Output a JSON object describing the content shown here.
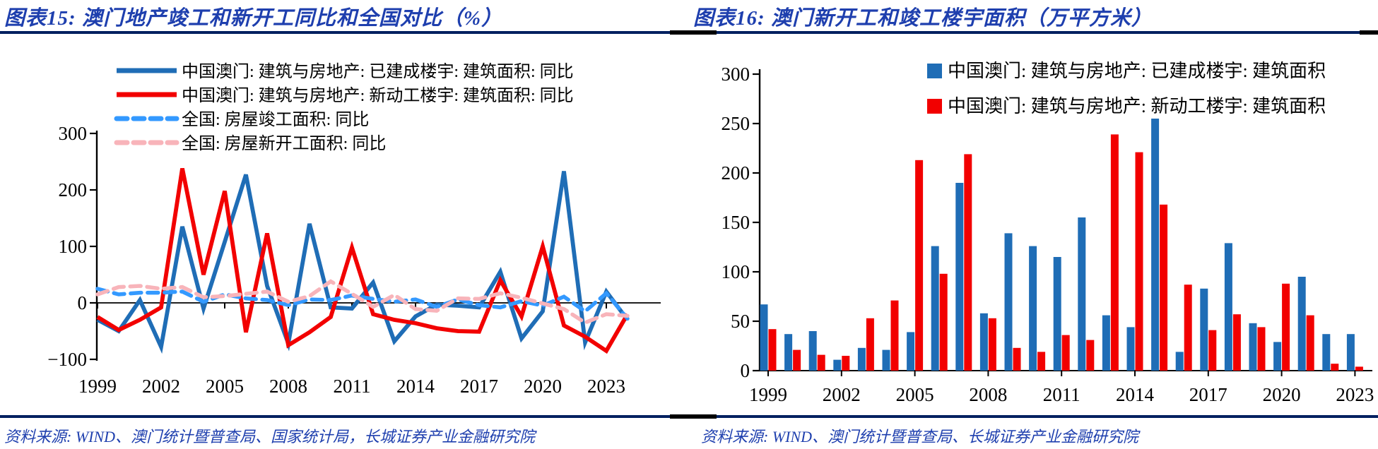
{
  "colors": {
    "title_text": "#1e3fae",
    "divider_rule": "#002060",
    "macau_completed_blue": "#1f6db6",
    "macau_new_starts_red": "#f20000",
    "national_completed_lightblue": "#3399ff",
    "national_new_starts_pink": "#f8b4ba",
    "axis_black": "#000000"
  },
  "left_panel": {
    "title": "图表15:  澳门地产竣工和新开工同比和全国对比（%）",
    "source": "资料来源: WIND、澳门统计暨普查局、国家统计局，长城证券产业金融研究院"
  },
  "right_panel": {
    "title": "图表16:  澳门新开工和竣工楼宇面积（万平方米）",
    "source": "资料来源: WIND、澳门统计暨普查局、长城证券产业金融研究院"
  },
  "chart_data": [
    {
      "type": "line",
      "title": "澳门地产竣工和新开工同比和全国对比（%）",
      "x": [
        1999,
        2000,
        2001,
        2002,
        2003,
        2004,
        2005,
        2006,
        2007,
        2008,
        2009,
        2010,
        2011,
        2012,
        2013,
        2014,
        2015,
        2016,
        2017,
        2018,
        2019,
        2020,
        2021,
        2022,
        2023,
        2024
      ],
      "xticks": [
        1999,
        2002,
        2005,
        2008,
        2011,
        2014,
        2017,
        2020,
        2023
      ],
      "ylim": [
        -100,
        300
      ],
      "yticks": [
        -100,
        0,
        100,
        200,
        300
      ],
      "grid": false,
      "legend_position": "top-left-inside",
      "series": [
        {
          "name": "中国澳门: 建筑与房地产: 已建成楼宇: 建筑面积: 同比",
          "color": "#1f6db6",
          "dash": "solid",
          "values": [
            -30,
            -50,
            5,
            -78,
            135,
            -10,
            108,
            227,
            30,
            -72,
            140,
            -8,
            -10,
            36,
            -68,
            -24,
            -3,
            -5,
            -8,
            55,
            -63,
            -15,
            233,
            -70,
            20,
            -30
          ]
        },
        {
          "name": "中国澳门: 建筑与房地产: 新动工楼宇: 建筑面积: 同比",
          "color": "#f20000",
          "dash": "solid",
          "values": [
            -25,
            -48,
            -30,
            -8,
            238,
            50,
            198,
            -52,
            123,
            -75,
            -52,
            -25,
            98,
            -20,
            -30,
            -36,
            -45,
            -50,
            -51,
            40,
            -24,
            100,
            -40,
            -60,
            -85,
            -20
          ]
        },
        {
          "name": "全国: 房屋竣工面积: 同比",
          "color": "#3399ff",
          "dash": "dashed",
          "values": [
            25,
            15,
            18,
            18,
            20,
            2,
            15,
            8,
            5,
            -4,
            6,
            5,
            13,
            7,
            2,
            6,
            -7,
            6,
            -4,
            -8,
            3,
            -5,
            11,
            -15,
            17,
            -28
          ]
        },
        {
          "name": "全国: 房屋新开工面积: 同比",
          "color": "#f8b4ba",
          "dash": "dashed",
          "values": [
            15,
            28,
            30,
            25,
            28,
            10,
            12,
            16,
            20,
            2,
            12,
            38,
            16,
            -7,
            14,
            -11,
            -14,
            8,
            7,
            17,
            9,
            -1,
            -11,
            -35,
            -20,
            -23
          ]
        }
      ]
    },
    {
      "type": "bar",
      "title": "澳门新开工和竣工楼宇面积（万平方米）",
      "categories": [
        1999,
        2000,
        2001,
        2002,
        2003,
        2004,
        2005,
        2006,
        2007,
        2008,
        2009,
        2010,
        2011,
        2012,
        2013,
        2014,
        2015,
        2016,
        2017,
        2018,
        2019,
        2020,
        2021,
        2022,
        2023
      ],
      "xticks": [
        1999,
        2002,
        2005,
        2008,
        2011,
        2014,
        2017,
        2020,
        2023
      ],
      "ylim": [
        0,
        300
      ],
      "yticks": [
        0,
        50,
        100,
        150,
        200,
        250,
        300
      ],
      "grid": false,
      "legend_position": "top-right-inside",
      "series": [
        {
          "name": "中国澳门: 建筑与房地产: 已建成楼宇: 建筑面积",
          "color": "#1f6db6",
          "values": [
            67,
            37,
            40,
            11,
            23,
            21,
            39,
            126,
            190,
            58,
            139,
            126,
            115,
            155,
            56,
            44,
            255,
            19,
            83,
            129,
            48,
            29,
            95,
            37,
            37
          ]
        },
        {
          "name": "中国澳门: 建筑与房地产: 新动工楼宇: 建筑面积",
          "color": "#f20000",
          "values": [
            42,
            21,
            16,
            15,
            53,
            71,
            213,
            98,
            219,
            53,
            23,
            19,
            36,
            31,
            239,
            221,
            168,
            87,
            41,
            57,
            44,
            88,
            56,
            7,
            4
          ]
        }
      ]
    }
  ]
}
